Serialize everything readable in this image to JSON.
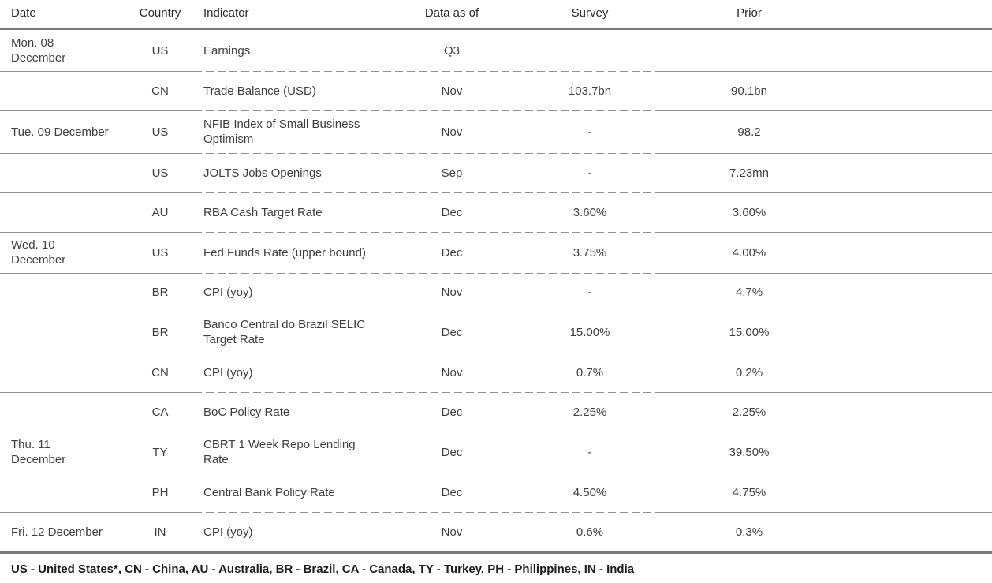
{
  "table": {
    "header": {
      "date": "Date",
      "country": "Country",
      "indicator": "Indicator",
      "data_as_of": "Data as of",
      "survey": "Survey",
      "prior": "Prior"
    },
    "rows": [
      {
        "date": "Mon. 08\nDecember",
        "country": "US",
        "indicator": "Earnings",
        "data_as_of": "Q3",
        "survey": "",
        "prior": ""
      },
      {
        "date": "",
        "country": "CN",
        "indicator": "Trade Balance (USD)",
        "data_as_of": "Nov",
        "survey": "103.7bn",
        "prior": "90.1bn"
      },
      {
        "date": "Tue. 09 December",
        "country": "US",
        "indicator": "NFIB Index of Small Business\nOptimism",
        "data_as_of": "Nov",
        "survey": "-",
        "prior": "98.2"
      },
      {
        "date": "",
        "country": "US",
        "indicator": "JOLTS Jobs Openings",
        "data_as_of": "Sep",
        "survey": "-",
        "prior": "7.23mn"
      },
      {
        "date": "",
        "country": "AU",
        "indicator": "RBA Cash Target Rate",
        "data_as_of": "Dec",
        "survey": "3.60%",
        "prior": "3.60%"
      },
      {
        "date": "Wed. 10\nDecember",
        "country": "US",
        "indicator": "Fed Funds Rate (upper bound)",
        "data_as_of": "Dec",
        "survey": "3.75%",
        "prior": "4.00%"
      },
      {
        "date": "",
        "country": "BR",
        "indicator": "CPI (yoy)",
        "data_as_of": "Nov",
        "survey": "-",
        "prior": "4.7%"
      },
      {
        "date": "",
        "country": "BR",
        "indicator": "Banco Central do Brazil SELIC\nTarget Rate",
        "data_as_of": "Dec",
        "survey": "15.00%",
        "prior": "15.00%"
      },
      {
        "date": "",
        "country": "CN",
        "indicator": "CPI (yoy)",
        "data_as_of": "Nov",
        "survey": "0.7%",
        "prior": "0.2%"
      },
      {
        "date": "",
        "country": "CA",
        "indicator": "BoC Policy Rate",
        "data_as_of": "Dec",
        "survey": "2.25%",
        "prior": "2.25%"
      },
      {
        "date": "Thu. 11\nDecember",
        "country": "TY",
        "indicator": "CBRT 1 Week Repo Lending\nRate",
        "data_as_of": "Dec",
        "survey": "-",
        "prior": "39.50%"
      },
      {
        "date": "",
        "country": "PH",
        "indicator": "Central Bank Policy Rate",
        "data_as_of": "Dec",
        "survey": "4.50%",
        "prior": "4.75%"
      },
      {
        "date": "Fri. 12 December",
        "country": "IN",
        "indicator": "CPI (yoy)",
        "data_as_of": "Nov",
        "survey": "0.6%",
        "prior": "0.3%"
      }
    ]
  },
  "footer": {
    "legend": "US - United States*, CN - China, AU - Australia, BR - Brazil, CA - Canada, TY - Turkey, PH - Philippines, IN - India"
  },
  "colors": {
    "text": "#3e3e3e",
    "header_text": "#2a2a2a",
    "footer_text": "#1d1d1d",
    "thick_rule": "#7b7b7b",
    "thin_rule": "#8f8f8f",
    "background": "#ffffff"
  }
}
